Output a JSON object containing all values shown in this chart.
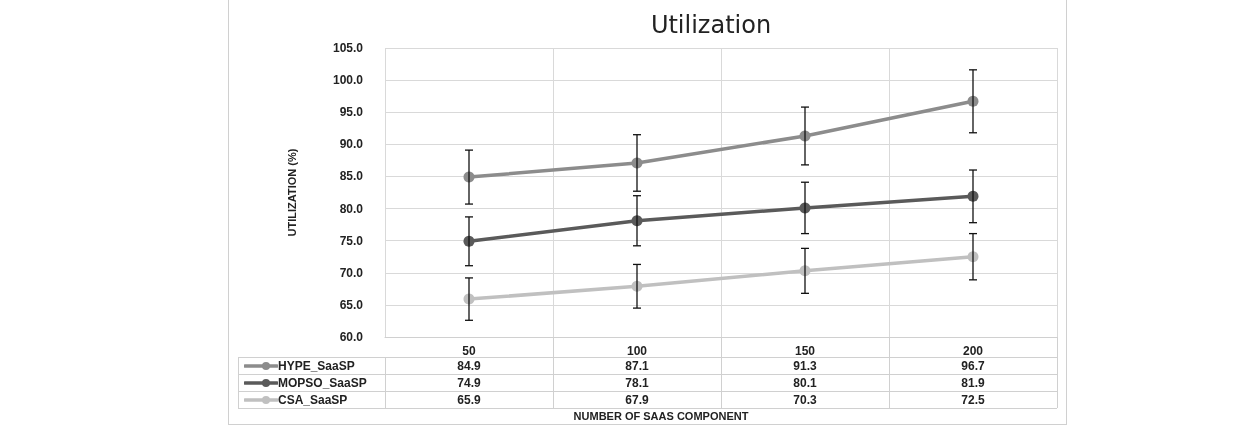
{
  "chart_data": {
    "type": "line",
    "title": "Utilization",
    "xlabel": "NUMBER OF SAAS COMPONENT",
    "ylabel": "UTILIZATION (%)",
    "categories": [
      "50",
      "100",
      "150",
      "200"
    ],
    "series": [
      {
        "name": "HYPE_SaaSP",
        "color": "#8c8c8c",
        "values": [
          84.9,
          87.1,
          91.3,
          96.7
        ],
        "errors": [
          4.2,
          4.4,
          4.5,
          4.9
        ]
      },
      {
        "name": "MOPSO_SaaSP",
        "color": "#5a5a5a",
        "values": [
          74.9,
          78.1,
          80.1,
          81.9
        ],
        "errors": [
          3.8,
          3.9,
          4.0,
          4.1
        ]
      },
      {
        "name": "CSA_SaaSP",
        "color": "#c0c0c0",
        "values": [
          65.9,
          67.9,
          70.3,
          72.5
        ],
        "errors": [
          3.3,
          3.4,
          3.5,
          3.6
        ]
      }
    ],
    "ylim": [
      60,
      105
    ],
    "yticks": [
      {
        "value": 60,
        "label": "60.0"
      },
      {
        "value": 65,
        "label": "65.0"
      },
      {
        "value": 70,
        "label": "70.0"
      },
      {
        "value": 75,
        "label": "75.0"
      },
      {
        "value": 80,
        "label": "80.0"
      },
      {
        "value": 85,
        "label": "85.0"
      },
      {
        "value": 90,
        "label": "90.0"
      },
      {
        "value": 95,
        "label": "95.0"
      },
      {
        "value": 100,
        "label": "100.0"
      },
      {
        "value": 105,
        "label": "105.0"
      }
    ],
    "grid": true,
    "legend": "bottom",
    "marker": "circle",
    "line_style": "solid",
    "data_labels": true
  }
}
